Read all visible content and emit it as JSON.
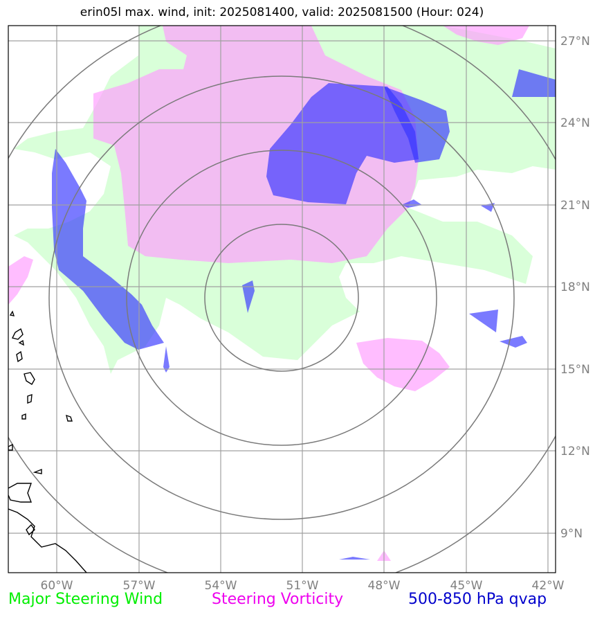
{
  "title": "erin05l max. wind, init: 2025081400, valid: 2025081500 (Hour: 024)",
  "axes": {
    "lon_labels": [
      "60°W",
      "57°W",
      "54°W",
      "51°W",
      "48°W",
      "45°W",
      "42°W"
    ],
    "lat_labels": [
      "27°N",
      "24°N",
      "21°N",
      "18°N",
      "15°N",
      "12°N",
      "9°N"
    ]
  },
  "layers": {
    "wind": {
      "color": "#ccffcc"
    },
    "vorticity": {
      "color": "#ff99ff"
    },
    "qvap": {
      "color": "#3333ff"
    }
  },
  "legend": [
    {
      "label": "Major Steering Wind",
      "color": "#00ee00"
    },
    {
      "label": "Steering Vorticity",
      "color": "#ee00ee"
    },
    {
      "label": "500-850 hPa qvap",
      "color": "#0000cc"
    }
  ]
}
